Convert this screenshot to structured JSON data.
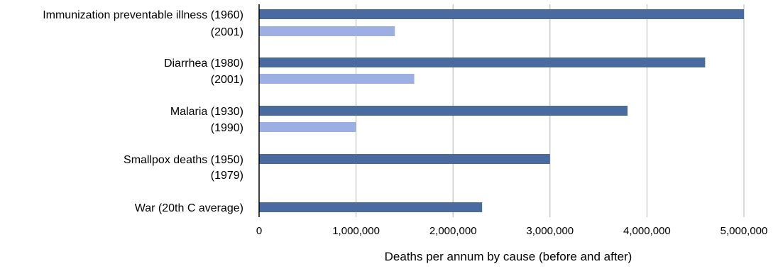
{
  "chart_data": {
    "type": "bar",
    "orientation": "horizontal",
    "categories": [
      "Immunization preventable illness (1960)",
      "(2001)",
      "Diarrhea (1980)",
      "(2001)",
      "Malaria (1930)",
      "(1990)",
      "Smallpox deaths (1950)",
      "(1979)",
      "War (20th C average)"
    ],
    "values": [
      5000000,
      1400000,
      4600000,
      1600000,
      3800000,
      1000000,
      3000000,
      0,
      2300000
    ],
    "bar_roles": [
      "before",
      "after",
      "before",
      "after",
      "before",
      "after",
      "before",
      "after",
      "before"
    ],
    "colors": {
      "before": "#4a6b9f",
      "after": "#9daee3",
      "grid": "#b4b4b4",
      "axis": "#000000"
    },
    "xlim": [
      0,
      5000000
    ],
    "x_ticks": [
      "0",
      "1,000,000",
      "2,000,000",
      "3,000,000",
      "4,000,000",
      "5,000,000"
    ],
    "x_tick_values": [
      0,
      1000000,
      2000000,
      3000000,
      4000000,
      5000000
    ],
    "xlabel": "Deaths per annum by cause (before and after)",
    "ylabel": "",
    "title": "",
    "grid": "vertical",
    "legend": "none"
  }
}
